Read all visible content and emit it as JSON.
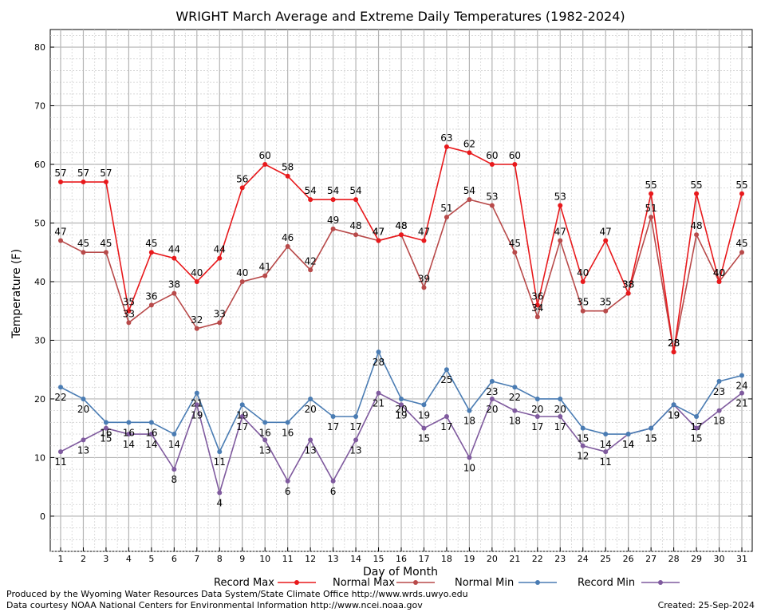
{
  "chart_data": {
    "type": "line",
    "title": "WRIGHT March Average and Extreme Daily Temperatures (1982-2024)",
    "xlabel": "Day of Month",
    "ylabel": "Temperature (F)",
    "x": [
      1,
      2,
      3,
      4,
      5,
      6,
      7,
      8,
      9,
      10,
      11,
      12,
      13,
      14,
      15,
      16,
      17,
      18,
      19,
      20,
      21,
      22,
      23,
      24,
      25,
      26,
      27,
      28,
      29,
      30,
      31
    ],
    "xlim": [
      1,
      31
    ],
    "ylim": [
      -6,
      83
    ],
    "yticks": [
      0,
      10,
      20,
      30,
      40,
      50,
      60,
      70,
      80
    ],
    "grid": true,
    "legend": "bottom",
    "series": [
      {
        "name": "Record Max",
        "color": "#e8191c",
        "label_pos": "above",
        "values": [
          57,
          57,
          57,
          35,
          45,
          44,
          40,
          44,
          56,
          60,
          58,
          54,
          54,
          54,
          47,
          48,
          47,
          63,
          62,
          60,
          60,
          36,
          53,
          40,
          47,
          38,
          55,
          28,
          55,
          40,
          55
        ]
      },
      {
        "name": "Normal Max",
        "color": "#b84a4a",
        "label_pos": "above",
        "values": [
          47,
          45,
          45,
          33,
          36,
          38,
          32,
          33,
          40,
          41,
          46,
          42,
          49,
          48,
          47,
          48,
          39,
          51,
          54,
          53,
          45,
          34,
          47,
          35,
          35,
          38,
          51,
          28,
          48,
          40,
          45
        ]
      },
      {
        "name": "Normal Min",
        "color": "#4a7cb3",
        "label_pos": "below",
        "values": [
          22,
          20,
          16,
          16,
          16,
          14,
          21,
          11,
          19,
          16,
          16,
          20,
          17,
          17,
          28,
          20,
          19,
          25,
          18,
          23,
          22,
          20,
          20,
          15,
          14,
          14,
          15,
          19,
          17,
          23,
          24
        ]
      },
      {
        "name": "Record Min",
        "color": "#7f5a9e",
        "label_pos": "below",
        "values": [
          11,
          13,
          15,
          14,
          14,
          8,
          19,
          4,
          17,
          13,
          6,
          13,
          6,
          13,
          21,
          19,
          15,
          17,
          10,
          20,
          18,
          17,
          17,
          12,
          11,
          14,
          15,
          19,
          15,
          18,
          21
        ]
      }
    ]
  },
  "footer": {
    "producer": "Produced by the Wyoming Water Resources Data System/State Climate Office http://www.wrds.uwyo.edu",
    "source": "Data courtesy NOAA National Centers for Environmental Information http://www.ncei.noaa.gov",
    "created": "Created:  25-Sep-2024"
  }
}
